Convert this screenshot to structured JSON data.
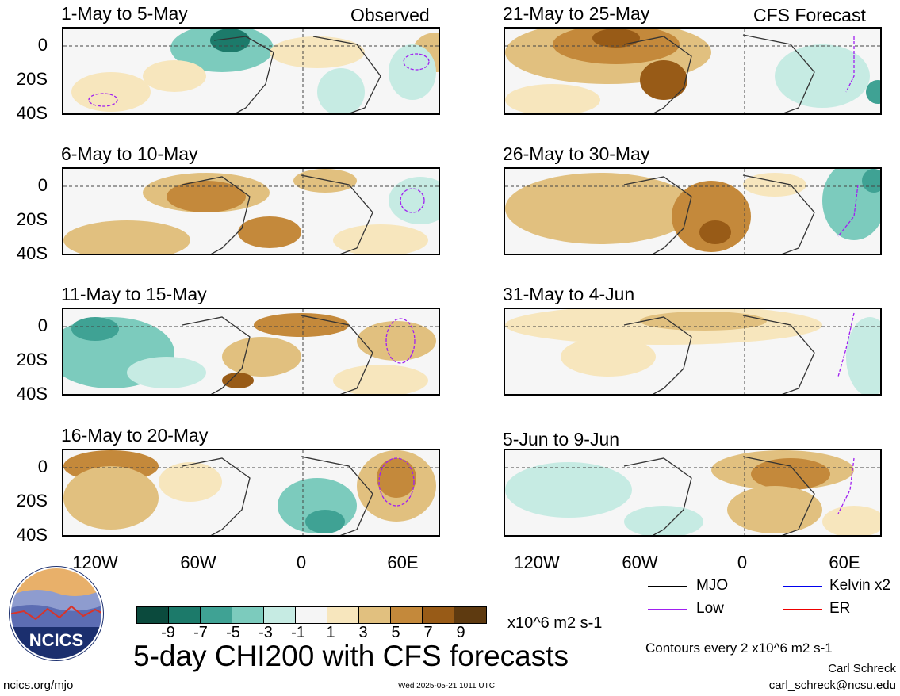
{
  "corner_labels": {
    "observed": "Observed",
    "forecast": "CFS Forecast"
  },
  "panels": {
    "left": [
      {
        "title": "1-May to 5-May"
      },
      {
        "title": "6-May to 10-May"
      },
      {
        "title": "11-May to 15-May"
      },
      {
        "title": "16-May to 20-May"
      }
    ],
    "right": [
      {
        "title": "21-May to 25-May"
      },
      {
        "title": "26-May to 30-May"
      },
      {
        "title": "31-May to 4-Jun"
      },
      {
        "title": "5-Jun to 9-Jun"
      }
    ]
  },
  "y_labels": [
    "0",
    "20S",
    "40S"
  ],
  "x_labels": [
    "120W",
    "60W",
    "0",
    "60E"
  ],
  "colorbar": {
    "colors": [
      "#0b4a3d",
      "#1c7a6a",
      "#3fa294",
      "#7ccbbd",
      "#c6ebe3",
      "#f5f5f5",
      "#f7e6bd",
      "#e1c07f",
      "#c4893b",
      "#985b17",
      "#5e3a10"
    ],
    "ticks": [
      "-9",
      "-7",
      "-5",
      "-3",
      "-1",
      "1",
      "3",
      "5",
      "7",
      "9"
    ],
    "units": "x10^6 m2 s-1"
  },
  "legend": {
    "mjo": "MJO",
    "kelvin": "Kelvin x2",
    "low": "Low",
    "er": "ER",
    "mjo_color": "#000000",
    "kelvin_color": "#0000ee",
    "low_color": "#a020f0",
    "er_color": "#ee0000"
  },
  "main_title": "5-day CHI200 with CFS forecasts",
  "contour_note": "Contours every 2 x10^6 m2 s-1",
  "author": "Carl Schreck",
  "email": "carl_schreck@ncsu.edu",
  "site": "ncics.org/mjo",
  "timestamp": "Wed 2025-05-21 1011 UTC",
  "logo_text": "NCICS"
}
